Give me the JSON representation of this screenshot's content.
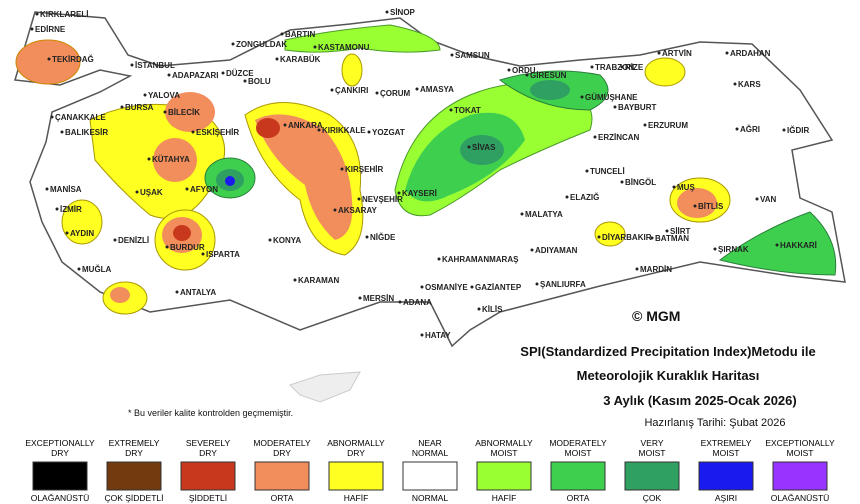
{
  "map": {
    "title_lines": [
      "SPI(Standardized Precipitation Index)Metodu ile",
      "Meteorolojik Kuraklık Haritası",
      "3 Aylık (Kasım 2025-Ocak 2026)"
    ],
    "prepared": "Hazırlanış Tarihi: Şubat 2026",
    "note": "* Bu veriler kalite kontrolden geçmemiştir.",
    "logo": "© MGM",
    "cities": [
      "KIRKLARELİ",
      "EDİRNE",
      "TEKİRDAĞ",
      "İSTANBUL",
      "ADAPAZARI",
      "DÜZCE",
      "BOLU",
      "ZONGULDAK",
      "BARTIN",
      "KARABÜK",
      "KASTAMONU",
      "SİNOP",
      "SAMSUN",
      "ORDU",
      "GİRESUN",
      "TRABZON",
      "RİZE",
      "ARTVİN",
      "ARDAHAN",
      "KARS",
      "YALOVA",
      "BURSA",
      "BİLECİK",
      "ÇANAKKALE",
      "BALIKESİR",
      "ESKİŞEHİR",
      "ANKARA",
      "KIRIKKALE",
      "ÇANKIRI",
      "ÇORUM",
      "AMASYA",
      "TOKAT",
      "YOZGAT",
      "SİVAS",
      "GÜMÜŞHANE",
      "BAYBURT",
      "ERZİNCAN",
      "ERZURUM",
      "AĞRI",
      "IĞDIR",
      "KÜTAHYA",
      "MANİSA",
      "UŞAK",
      "AFYON",
      "KIRŞEHİR",
      "NEVŞEHİR",
      "KAYSERİ",
      "TUNCELİ",
      "BİNGÖL",
      "MUŞ",
      "VAN",
      "BİTLİS",
      "İZMİR",
      "ELAZIĞ",
      "MALATYA",
      "AKSARAY",
      "NİĞDE",
      "KONYA",
      "AYDIN",
      "DENİZLİ",
      "BURDUR",
      "ISPARTA",
      "SİİRT",
      "ŞIRNAK",
      "HAKKARİ",
      "DİYARBAKIR",
      "BATMAN",
      "ADIYAMAN",
      "KAHRAMANMARAŞ",
      "MARDİN",
      "MUĞLA",
      "KARAMAN",
      "OSMANİYE",
      "GAZİANTEP",
      "ŞANLIURFA",
      "ANTALYA",
      "MERSİN",
      "ADANA",
      "KİLİS",
      "HATAY"
    ]
  },
  "legend": [
    {
      "label_en": [
        "EXCEPTIONALLY",
        "DRY"
      ],
      "label_tr": "OLAĞANÜSTÜ",
      "color": "#000000"
    },
    {
      "label_en": [
        "EXTREMELY",
        "DRY"
      ],
      "label_tr": "ÇOK ŞİDDETLİ",
      "color": "#733a10"
    },
    {
      "label_en": [
        "SEVERELY",
        "DRY"
      ],
      "label_tr": "ŞİDDETLİ",
      "color": "#c8381c"
    },
    {
      "label_en": [
        "MODERATELY",
        "DRY"
      ],
      "label_tr": "ORTA",
      "color": "#f28d5c"
    },
    {
      "label_en": [
        "ABNORMALLY",
        "DRY"
      ],
      "label_tr": "HAFİF",
      "color": "#ffff22"
    },
    {
      "label_en": [
        "NEAR",
        "NORMAL"
      ],
      "label_tr": "NORMAL",
      "color": "#ffffff"
    },
    {
      "label_en": [
        "ABNORMALLY",
        "MOIST"
      ],
      "label_tr": "HAFİF",
      "color": "#99ff33"
    },
    {
      "label_en": [
        "MODERATELY",
        "MOIST"
      ],
      "label_tr": "ORTA",
      "color": "#3fcf4f"
    },
    {
      "label_en": [
        "VERY",
        "MOIST"
      ],
      "label_tr": "ÇOK",
      "color": "#2f9f62"
    },
    {
      "label_en": [
        "EXTREMELY",
        "MOIST"
      ],
      "label_tr": "AŞIRI",
      "color": "#1a1aee"
    },
    {
      "label_en": [
        "EXCEPTIONALLY",
        "MOIST"
      ],
      "label_tr": "OLAĞANÜSTÜ",
      "color": "#9933ff"
    }
  ]
}
